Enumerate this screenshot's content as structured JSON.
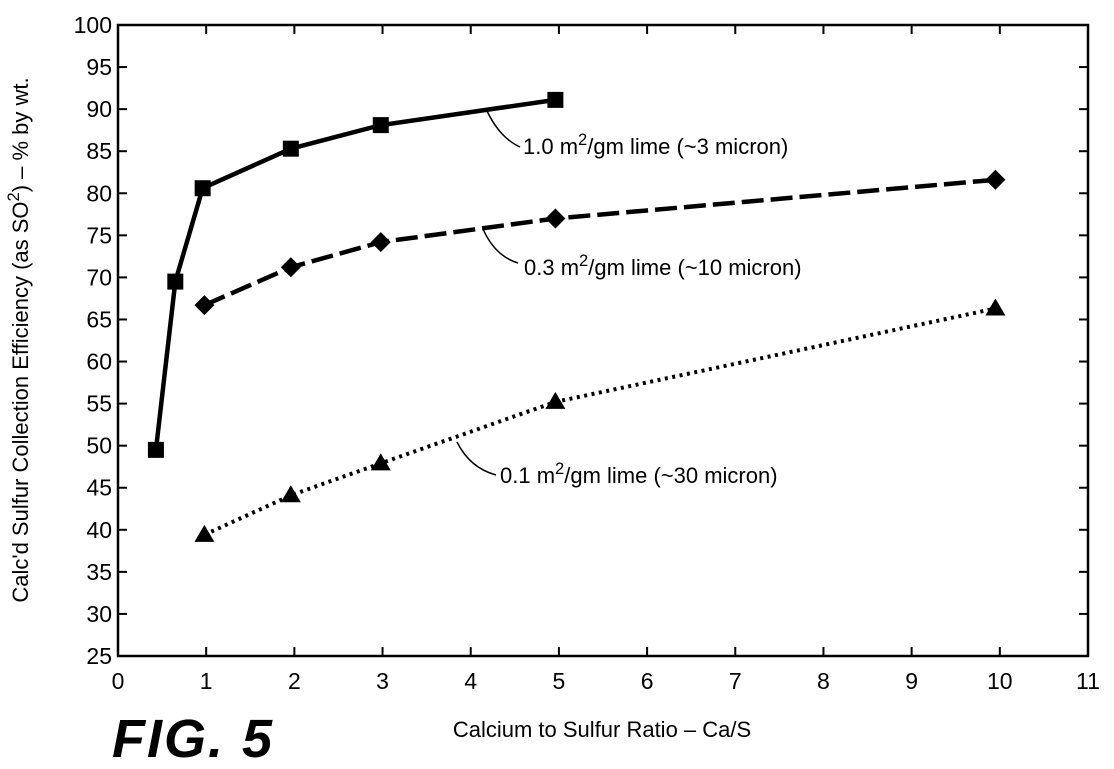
{
  "figure_label": "FIG. 5",
  "chart_data": {
    "type": "line",
    "title": "",
    "xlabel": "Calcium to Sulfur Ratio – Ca/S",
    "ylabel_parts": [
      "Calc'd Sulfur Collection Efficiency (as SO",
      "2",
      ") – % by wt."
    ],
    "xlim": [
      0,
      11
    ],
    "ylim": [
      25,
      100
    ],
    "x_ticks": [
      0,
      1,
      2,
      3,
      4,
      5,
      6,
      7,
      8,
      9,
      10,
      11
    ],
    "y_ticks": [
      25,
      30,
      35,
      40,
      45,
      50,
      55,
      60,
      65,
      70,
      75,
      80,
      85,
      90,
      95,
      100
    ],
    "grid": false,
    "series": [
      {
        "label_parts": [
          "1.0 m",
          "2",
          "/gm lime (~3 micron)"
        ],
        "marker": "square",
        "line_style": "solid",
        "x": [
          0.43,
          0.65,
          0.96,
          1.96,
          2.98,
          4.96
        ],
        "y": [
          49.5,
          69.5,
          80.6,
          85.3,
          88.1,
          91.1
        ]
      },
      {
        "label_parts": [
          "0.3 m",
          "2",
          "/gm lime (~10 micron)"
        ],
        "marker": "diamond",
        "line_style": "dashed",
        "x": [
          0.98,
          1.96,
          2.98,
          4.96,
          9.95
        ],
        "y": [
          66.7,
          71.2,
          74.2,
          77.0,
          81.6
        ]
      },
      {
        "label_parts": [
          "0.1 m",
          "2",
          "/gm lime (~30 micron)"
        ],
        "marker": "triangle",
        "line_style": "dotted",
        "x": [
          0.98,
          1.96,
          2.98,
          4.96,
          9.95
        ],
        "y": [
          39.4,
          44.1,
          47.9,
          55.2,
          66.3
        ]
      }
    ]
  }
}
